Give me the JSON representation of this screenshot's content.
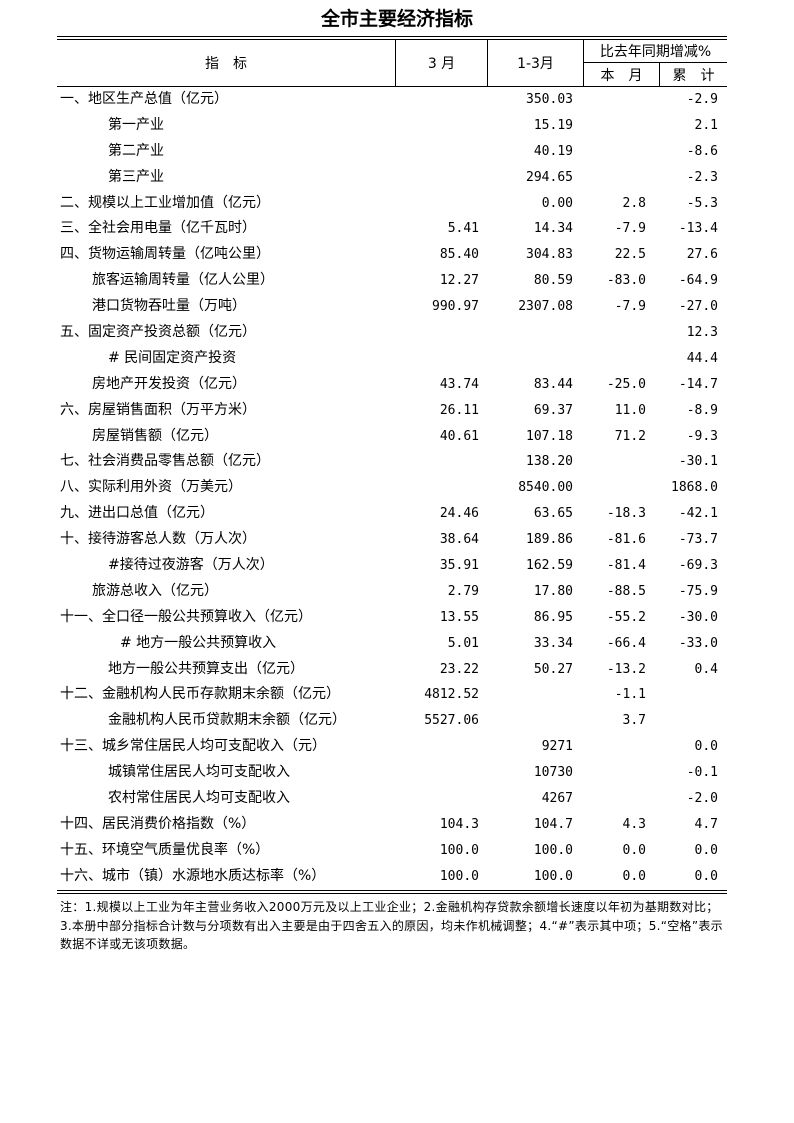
{
  "title": "全市主要经济指标",
  "header": {
    "indicator": "指　标",
    "month": "3 月",
    "ytd": "1-3月",
    "change": "比去年同期增减%",
    "change_month": "本　月",
    "change_ytd": "累　计"
  },
  "rows": [
    {
      "label": "一、地区生产总值（亿元）",
      "indent": 0,
      "m": "",
      "ytd": "350.03",
      "cm": "",
      "cy": "-2.9"
    },
    {
      "label": "第一产业",
      "indent": 3,
      "m": "",
      "ytd": "15.19",
      "cm": "",
      "cy": "2.1"
    },
    {
      "label": "第二产业",
      "indent": 3,
      "m": "",
      "ytd": "40.19",
      "cm": "",
      "cy": "-8.6"
    },
    {
      "label": "第三产业",
      "indent": 3,
      "m": "",
      "ytd": "294.65",
      "cm": "",
      "cy": "-2.3"
    },
    {
      "label": "二、规模以上工业增加值（亿元）",
      "indent": 0,
      "m": "",
      "ytd": "0.00",
      "cm": "2.8",
      "cy": "-5.3"
    },
    {
      "label": "三、全社会用电量（亿千瓦时）",
      "indent": 0,
      "m": "5.41",
      "ytd": "14.34",
      "cm": "-7.9",
      "cy": "-13.4"
    },
    {
      "label": "四、货物运输周转量（亿吨公里）",
      "indent": 0,
      "m": "85.40",
      "ytd": "304.83",
      "cm": "22.5",
      "cy": "27.6"
    },
    {
      "label": "旅客运输周转量（亿人公里）",
      "indent": 2,
      "m": "12.27",
      "ytd": "80.59",
      "cm": "-83.0",
      "cy": "-64.9"
    },
    {
      "label": "港口货物吞吐量（万吨）",
      "indent": 2,
      "m": "990.97",
      "ytd": "2307.08",
      "cm": "-7.9",
      "cy": "-27.0"
    },
    {
      "label": "五、固定资产投资总额（亿元）",
      "indent": 0,
      "m": "",
      "ytd": "",
      "cm": "",
      "cy": "12.3"
    },
    {
      "label": "# 民间固定资产投资",
      "indent": 3,
      "m": "",
      "ytd": "",
      "cm": "",
      "cy": "44.4"
    },
    {
      "label": "房地产开发投资（亿元）",
      "indent": 2,
      "m": "43.74",
      "ytd": "83.44",
      "cm": "-25.0",
      "cy": "-14.7"
    },
    {
      "label": "六、房屋销售面积（万平方米）",
      "indent": 0,
      "m": "26.11",
      "ytd": "69.37",
      "cm": "11.0",
      "cy": "-8.9"
    },
    {
      "label": "房屋销售额（亿元）",
      "indent": 2,
      "m": "40.61",
      "ytd": "107.18",
      "cm": "71.2",
      "cy": "-9.3"
    },
    {
      "label": "七、社会消费品零售总额（亿元）",
      "indent": 0,
      "m": "",
      "ytd": "138.20",
      "cm": "",
      "cy": "-30.1"
    },
    {
      "label": "八、实际利用外资（万美元）",
      "indent": 0,
      "m": "",
      "ytd": "8540.00",
      "cm": "",
      "cy": "1868.0"
    },
    {
      "label": "九、进出口总值（亿元）",
      "indent": 0,
      "m": "24.46",
      "ytd": "63.65",
      "cm": "-18.3",
      "cy": "-42.1"
    },
    {
      "label": "十、接待游客总人数（万人次）",
      "indent": 0,
      "m": "38.64",
      "ytd": "189.86",
      "cm": "-81.6",
      "cy": "-73.7"
    },
    {
      "label": "#接待过夜游客（万人次）",
      "indent": 3,
      "m": "35.91",
      "ytd": "162.59",
      "cm": "-81.4",
      "cy": "-69.3"
    },
    {
      "label": "旅游总收入（亿元）",
      "indent": 2,
      "m": "2.79",
      "ytd": "17.80",
      "cm": "-88.5",
      "cy": "-75.9"
    },
    {
      "label": "十一、全口径一般公共预算收入（亿元）",
      "indent": 0,
      "m": "13.55",
      "ytd": "86.95",
      "cm": "-55.2",
      "cy": "-30.0"
    },
    {
      "label": "# 地方一般公共预算收入",
      "indent": 4,
      "m": "5.01",
      "ytd": "33.34",
      "cm": "-66.4",
      "cy": "-33.0"
    },
    {
      "label": "地方一般公共预算支出（亿元）",
      "indent": 3,
      "m": "23.22",
      "ytd": "50.27",
      "cm": "-13.2",
      "cy": "0.4"
    },
    {
      "label": "十二、金融机构人民币存款期末余额（亿元）",
      "indent": 0,
      "m": "4812.52",
      "ytd": "",
      "cm": "-1.1",
      "cy": ""
    },
    {
      "label": "金融机构人民币贷款期末余额（亿元）",
      "indent": 3,
      "m": "5527.06",
      "ytd": "",
      "cm": "3.7",
      "cy": ""
    },
    {
      "label": "十三、城乡常住居民人均可支配收入（元）",
      "indent": 0,
      "m": "",
      "ytd": "9271",
      "cm": "",
      "cy": "0.0"
    },
    {
      "label": "城镇常住居民人均可支配收入",
      "indent": 3,
      "m": "",
      "ytd": "10730",
      "cm": "",
      "cy": "-0.1"
    },
    {
      "label": "农村常住居民人均可支配收入",
      "indent": 3,
      "m": "",
      "ytd": "4267",
      "cm": "",
      "cy": "-2.0"
    },
    {
      "label": "十四、居民消费价格指数（%）",
      "indent": 0,
      "m": "104.3",
      "ytd": "104.7",
      "cm": "4.3",
      "cy": "4.7"
    },
    {
      "label": "十五、环境空气质量优良率（%）",
      "indent": 0,
      "m": "100.0",
      "ytd": "100.0",
      "cm": "0.0",
      "cy": "0.0"
    },
    {
      "label": "十六、城市（镇）水源地水质达标率（%）",
      "indent": 0,
      "m": "100.0",
      "ytd": "100.0",
      "cm": "0.0",
      "cy": "0.0"
    }
  ],
  "notes": "注：1.规模以上工业为年主营业务收入2000万元及以上工业企业；2.金融机构存贷款余额增长速度以年初为基期数对比；3.本册中部分指标合计数与分项数有出入主要是由于四舍五入的原因，均未作机械调整；4.“#”表示其中项；5.“空格”表示数据不详或无该项数据。"
}
